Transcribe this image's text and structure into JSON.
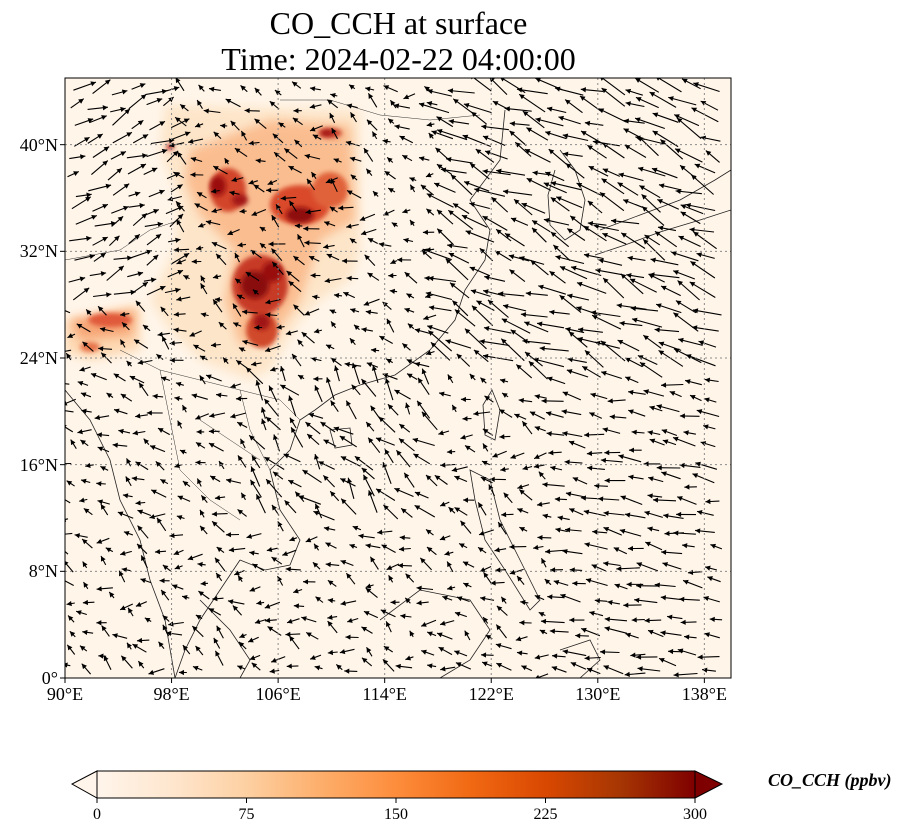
{
  "title": {
    "line1": "CO_CCH at surface",
    "line2": "Time: 2024-02-22 04:00:00"
  },
  "map": {
    "x_ticks": [
      "90°E",
      "98°E",
      "106°E",
      "114°E",
      "122°E",
      "130°E",
      "138°E"
    ],
    "y_ticks": [
      "0°",
      "8°N",
      "16°N",
      "24°N",
      "32°N",
      "40°N"
    ],
    "lon_range": [
      90,
      140
    ],
    "lat_range": [
      0,
      45
    ],
    "gridlines": "dotted",
    "background_color": "#fff5e9",
    "plume_colors": [
      "#fdd9b0",
      "#f9a56f",
      "#e2502f",
      "#a50f0f"
    ],
    "vector_field": "wind arrows"
  },
  "colorbar": {
    "label": "CO_CCH (ppbv)",
    "ticks": [
      "0",
      "75",
      "150",
      "225",
      "300"
    ],
    "min": 0,
    "max": 300,
    "extend": "both",
    "colormap": "OrRd",
    "colors": [
      "#fff5eb",
      "#fee6ce",
      "#fdd0a2",
      "#fdae6b",
      "#fd8d3c",
      "#f16913",
      "#d94801",
      "#a63603",
      "#7f0000"
    ]
  }
}
